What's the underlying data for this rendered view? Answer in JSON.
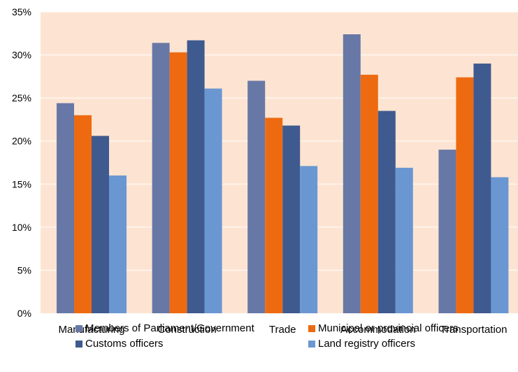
{
  "chart_data": {
    "type": "bar",
    "categories": [
      "Manufacturing",
      "Construction",
      "Trade",
      "Accommodation",
      "Transportation"
    ],
    "series": [
      {
        "name": "Members of Parliament/Government",
        "color": "#6878a6",
        "values": [
          24.4,
          31.4,
          27.0,
          32.4,
          19.0
        ]
      },
      {
        "name": "Municipal or provincial officers",
        "color": "#ee6a10",
        "values": [
          23.0,
          30.3,
          22.7,
          27.7,
          27.4
        ]
      },
      {
        "name": "Customs officers",
        "color": "#3f5a8f",
        "values": [
          20.6,
          31.7,
          21.8,
          23.5,
          29.0
        ]
      },
      {
        "name": "Land registry officers",
        "color": "#6a97d2",
        "values": [
          16.0,
          26.1,
          17.1,
          16.9,
          15.8
        ]
      }
    ],
    "yticks": [
      "0%",
      "5%",
      "10%",
      "15%",
      "20%",
      "25%",
      "30%",
      "35%"
    ],
    "ylim": [
      0,
      35
    ],
    "grid": true,
    "plot_background": "#fde4d2",
    "legend_position": "bottom"
  }
}
